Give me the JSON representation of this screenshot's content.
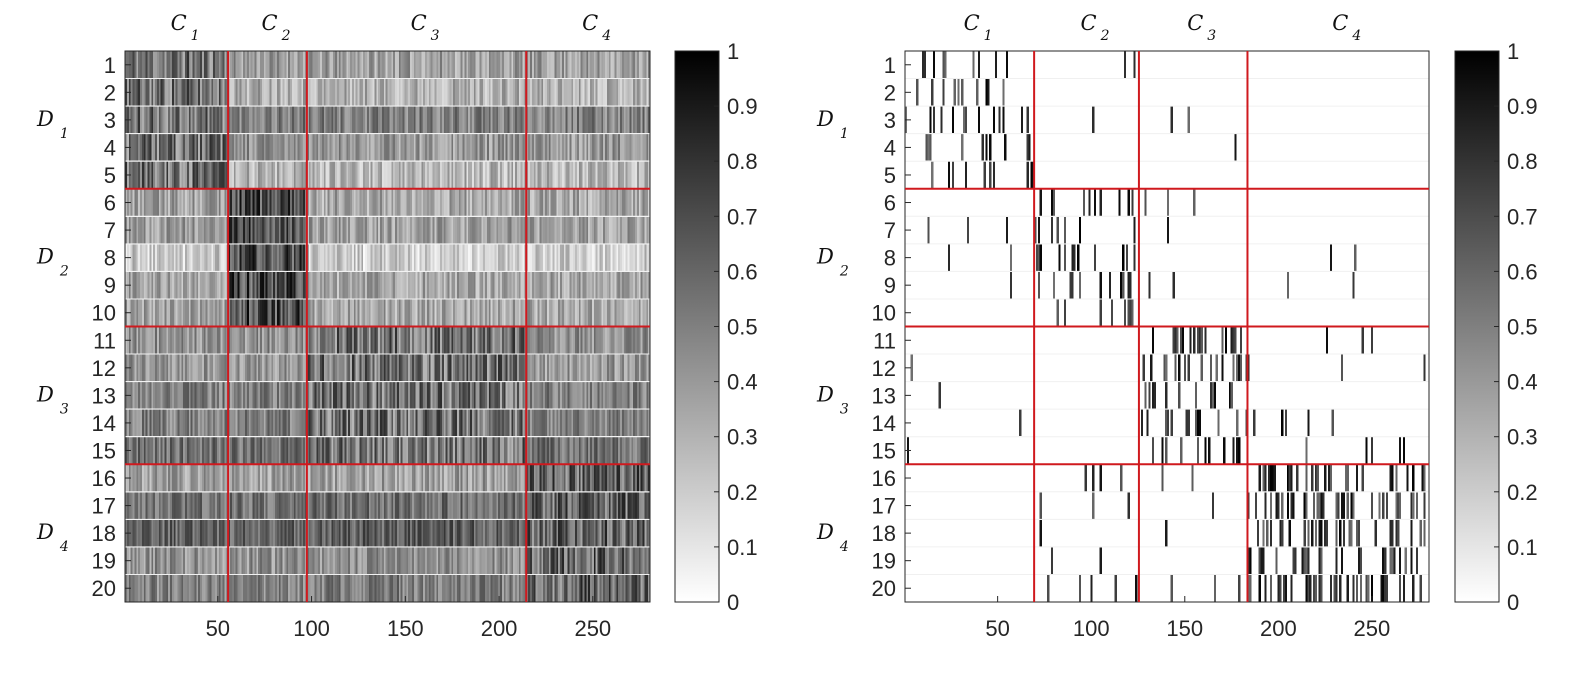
{
  "chart_data": [
    {
      "type": "heatmap",
      "title": "",
      "xlabel": "",
      "ylabel": "",
      "xlim": [
        1,
        280
      ],
      "rows": 20,
      "columns": 280,
      "x_ticks": [
        "50",
        "100",
        "150",
        "200",
        "250"
      ],
      "y_ticks": [
        "1",
        "2",
        "3",
        "4",
        "5",
        "6",
        "7",
        "8",
        "9",
        "10",
        "11",
        "12",
        "13",
        "14",
        "15",
        "16",
        "17",
        "18",
        "19",
        "20"
      ],
      "row_groups": [
        {
          "label": "D",
          "sub": "1",
          "rows": [
            1,
            5
          ]
        },
        {
          "label": "D",
          "sub": "2",
          "rows": [
            6,
            10
          ]
        },
        {
          "label": "D",
          "sub": "3",
          "rows": [
            11,
            15
          ]
        },
        {
          "label": "D",
          "sub": "4",
          "rows": [
            16,
            20
          ]
        }
      ],
      "column_groups": [
        {
          "label": "C",
          "sub": "1",
          "cols": [
            1,
            55
          ]
        },
        {
          "label": "C",
          "sub": "2",
          "cols": [
            56,
            97
          ]
        },
        {
          "label": "C",
          "sub": "3",
          "cols": [
            98,
            214
          ]
        },
        {
          "label": "C",
          "sub": "4",
          "cols": [
            215,
            280
          ]
        }
      ],
      "col_boundaries": [
        55.5,
        97.5,
        214.5
      ],
      "row_boundaries": [
        5.5,
        10.5,
        15.5
      ],
      "block_mean_intensity": [
        [
          0.55,
          0.3,
          0.25,
          0.25
        ],
        [
          0.3,
          0.7,
          0.25,
          0.25
        ],
        [
          0.4,
          0.4,
          0.55,
          0.4
        ],
        [
          0.45,
          0.45,
          0.5,
          0.6
        ]
      ],
      "row_base_intensity": [
        0.45,
        0.35,
        0.65,
        0.5,
        0.3,
        0.4,
        0.45,
        0.15,
        0.4,
        0.4,
        0.45,
        0.4,
        0.55,
        0.55,
        0.65,
        0.3,
        0.6,
        0.7,
        0.4,
        0.5
      ],
      "sparse": false,
      "colorbar": {
        "min": 0,
        "max": 1,
        "ticks": [
          "0",
          "0.1",
          "0.2",
          "0.3",
          "0.4",
          "0.5",
          "0.6",
          "0.7",
          "0.8",
          "0.9",
          "1"
        ],
        "colormap": "gray (white=0, black=1)"
      },
      "boundary_color": "#d0191e"
    },
    {
      "type": "heatmap",
      "title": "",
      "xlabel": "",
      "ylabel": "",
      "xlim": [
        1,
        280
      ],
      "rows": 20,
      "columns": 280,
      "x_ticks": [
        "50",
        "100",
        "150",
        "200",
        "250"
      ],
      "y_ticks": [
        "1",
        "2",
        "3",
        "4",
        "5",
        "6",
        "7",
        "8",
        "9",
        "10",
        "11",
        "12",
        "13",
        "14",
        "15",
        "16",
        "17",
        "18",
        "19",
        "20"
      ],
      "row_groups": [
        {
          "label": "D",
          "sub": "1",
          "rows": [
            1,
            5
          ]
        },
        {
          "label": "D",
          "sub": "2",
          "rows": [
            6,
            10
          ]
        },
        {
          "label": "D",
          "sub": "3",
          "rows": [
            11,
            15
          ]
        },
        {
          "label": "D",
          "sub": "4",
          "rows": [
            16,
            20
          ]
        }
      ],
      "column_groups": [
        {
          "label": "C",
          "sub": "1",
          "cols": [
            1,
            69
          ]
        },
        {
          "label": "C",
          "sub": "2",
          "cols": [
            70,
            125
          ]
        },
        {
          "label": "C",
          "sub": "3",
          "cols": [
            126,
            183
          ]
        },
        {
          "label": "C",
          "sub": "4",
          "cols": [
            184,
            280
          ]
        }
      ],
      "col_boundaries": [
        69.5,
        125.5,
        183.5
      ],
      "row_boundaries": [
        5.5,
        10.5,
        15.5
      ],
      "block_mean_intensity": [
        [
          0.15,
          0.02,
          0.01,
          0.0
        ],
        [
          0.02,
          0.2,
          0.02,
          0.01
        ],
        [
          0.01,
          0.0,
          0.25,
          0.02
        ],
        [
          0.0,
          0.04,
          0.01,
          0.3
        ]
      ],
      "row_base_intensity": [
        0,
        0,
        0,
        0,
        0,
        0,
        0,
        0,
        0,
        0,
        0,
        0,
        0,
        0,
        0,
        0,
        0,
        0,
        0,
        0
      ],
      "sparse": true,
      "colorbar": {
        "min": 0,
        "max": 1,
        "ticks": [
          "0",
          "0.1",
          "0.2",
          "0.3",
          "0.4",
          "0.5",
          "0.6",
          "0.7",
          "0.8",
          "0.9",
          "1"
        ],
        "colormap": "gray (white=0, black=1)"
      },
      "boundary_color": "#d0191e"
    }
  ]
}
